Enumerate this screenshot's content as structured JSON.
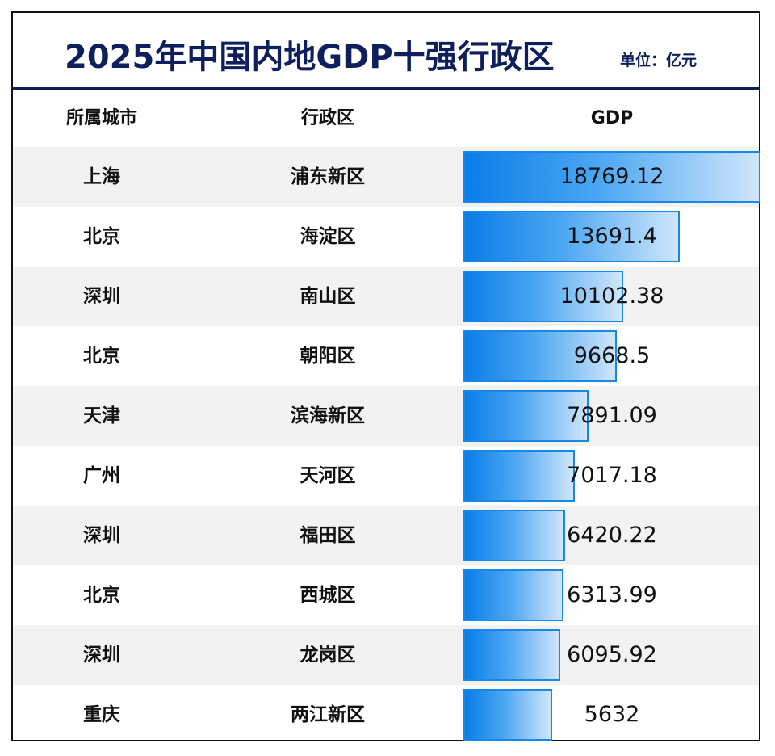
{
  "header": {
    "title": "2025年中国内地GDP十强行政区",
    "unit": "单位：亿元"
  },
  "columns": {
    "city": "所属城市",
    "district": "行政区",
    "gdp": "GDP"
  },
  "chart_data": {
    "type": "bar",
    "title": "2025年中国内地GDP十强行政区",
    "unit": "单位：亿元",
    "orientation": "horizontal",
    "categories": [
      "浦东新区",
      "海淀区",
      "南山区",
      "朝阳区",
      "滨海新区",
      "天河区",
      "福田区",
      "西城区",
      "龙岗区",
      "两江新区"
    ],
    "cities": [
      "上海",
      "北京",
      "深圳",
      "北京",
      "天津",
      "广州",
      "深圳",
      "北京",
      "深圳",
      "重庆"
    ],
    "values": [
      18769.12,
      13691.4,
      10102.38,
      9668.5,
      7891.09,
      7017.18,
      6420.22,
      6313.99,
      6095.92,
      5632
    ],
    "value_labels": [
      "18769.12",
      "13691.4",
      "10102.38",
      "9668.5",
      "7891.09",
      "7017.18",
      "6420.22",
      "6313.99",
      "6095.92",
      "5632"
    ],
    "xlim": [
      0,
      18769.12
    ],
    "bar_color": "#0a7de8",
    "bar_border": "#1a86e6"
  },
  "colors": {
    "title": "#0d1f5c",
    "stripe": "#f2f2f2"
  }
}
